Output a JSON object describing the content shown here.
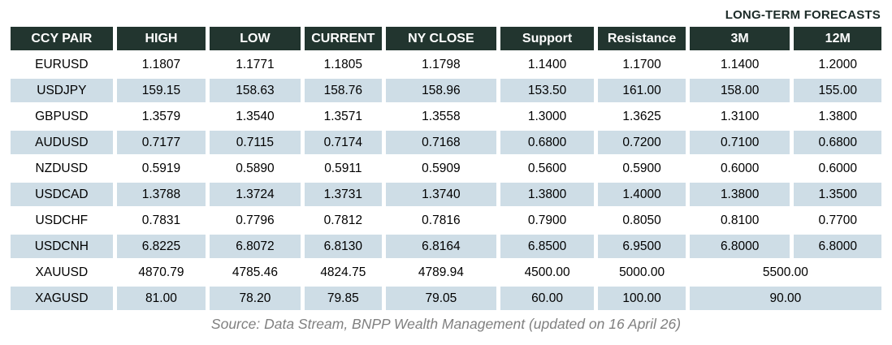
{
  "title": "LONG-TERM FORECASTS",
  "source_note": "Source: Data Stream, BNPP Wealth Management (updated on 16 April 26)",
  "colors": {
    "header_bg": "#22352f",
    "header_text": "#ffffff",
    "row_bg": "#ffffff",
    "row_alt_bg": "#cedde6",
    "cell_text": "#000000",
    "title_text": "#1c2b28",
    "source_text": "#808080"
  },
  "table": {
    "headers": [
      "CCY PAIR",
      "HIGH",
      "LOW",
      "CURRENT",
      "NY CLOSE",
      "Support",
      "Resistance",
      "3M",
      "12M"
    ],
    "rows": [
      {
        "pair": "EURUSD",
        "values": [
          "1.1807",
          "1.1771",
          "1.1805",
          "1.1798",
          "1.1400",
          "1.1700",
          "1.1400",
          "1.2000"
        ]
      },
      {
        "pair": "USDJPY",
        "values": [
          "159.15",
          "158.63",
          "158.76",
          "158.96",
          "153.50",
          "161.00",
          "158.00",
          "155.00"
        ]
      },
      {
        "pair": "GBPUSD",
        "values": [
          "1.3579",
          "1.3540",
          "1.3571",
          "1.3558",
          "1.3000",
          "1.3625",
          "1.3100",
          "1.3800"
        ]
      },
      {
        "pair": "AUDUSD",
        "values": [
          "0.7177",
          "0.7115",
          "0.7174",
          "0.7168",
          "0.6800",
          "0.7200",
          "0.7100",
          "0.6800"
        ]
      },
      {
        "pair": "NZDUSD",
        "values": [
          "0.5919",
          "0.5890",
          "0.5911",
          "0.5909",
          "0.5600",
          "0.5900",
          "0.6000",
          "0.6000"
        ]
      },
      {
        "pair": "USDCAD",
        "values": [
          "1.3788",
          "1.3724",
          "1.3731",
          "1.3740",
          "1.3800",
          "1.4000",
          "1.3800",
          "1.3500"
        ]
      },
      {
        "pair": "USDCHF",
        "values": [
          "0.7831",
          "0.7796",
          "0.7812",
          "0.7816",
          "0.7900",
          "0.8050",
          "0.8100",
          "0.7700"
        ]
      },
      {
        "pair": "USDCNH",
        "values": [
          "6.8225",
          "6.8072",
          "6.8130",
          "6.8164",
          "6.8500",
          "6.9500",
          "6.8000",
          "6.8000"
        ]
      },
      {
        "pair": "XAUUSD",
        "values": [
          "4870.79",
          "4785.46",
          "4824.75",
          "4789.94",
          "4500.00",
          "5000.00"
        ],
        "merged_forecast": "5500.00"
      },
      {
        "pair": "XAGUSD",
        "values": [
          "81.00",
          "78.20",
          "79.85",
          "79.05",
          "60.00",
          "100.00"
        ],
        "merged_forecast": "90.00"
      }
    ]
  }
}
